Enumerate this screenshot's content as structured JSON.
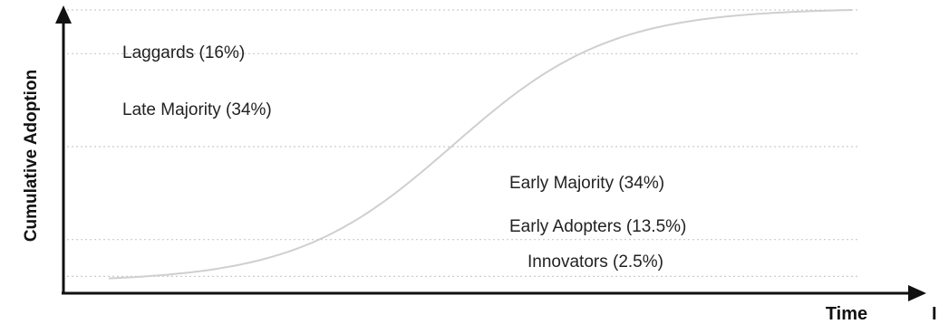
{
  "chart_data": {
    "type": "line",
    "title": "",
    "xlabel": "Time",
    "ylabel": "Cumulative Adoption",
    "ylim": [
      0,
      100
    ],
    "grid": "dotted horizontal lines at segment boundaries",
    "legend": "none",
    "x_stray_mark": "I",
    "colors": {
      "curve": "#cfcfcf",
      "axis": "#111111",
      "grid": "#cccccc",
      "text": "#222222"
    },
    "boundaries": [
      2.5,
      16,
      50,
      84,
      100
    ],
    "segments": [
      {
        "label": "Laggards (16%)",
        "share": 16
      },
      {
        "label": "Late Majority (34%)",
        "share": 34
      },
      {
        "label": "Early Majority (34%)",
        "share": 34
      },
      {
        "label": "Early Adopters (13.5%)",
        "share": 13.5
      },
      {
        "label": "Innovators (2.5%)",
        "share": 2.5
      }
    ]
  }
}
